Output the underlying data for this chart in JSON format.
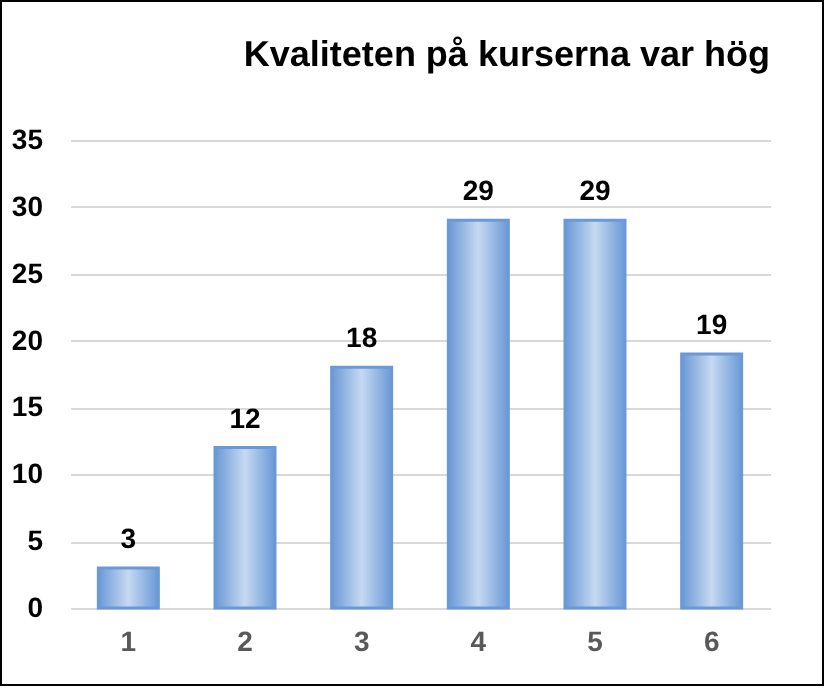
{
  "chart_data": {
    "type": "bar",
    "title": "Kvaliteten  på kurserna  var hög",
    "categories": [
      "1",
      "2",
      "3",
      "4",
      "5",
      "6"
    ],
    "values": [
      3,
      12,
      18,
      29,
      29,
      19
    ],
    "color": "#6a99d6",
    "ylim": [
      0,
      35
    ],
    "yticks": [
      0,
      5,
      10,
      15,
      20,
      25,
      30,
      35
    ],
    "grid": "y",
    "data_labels": true
  }
}
